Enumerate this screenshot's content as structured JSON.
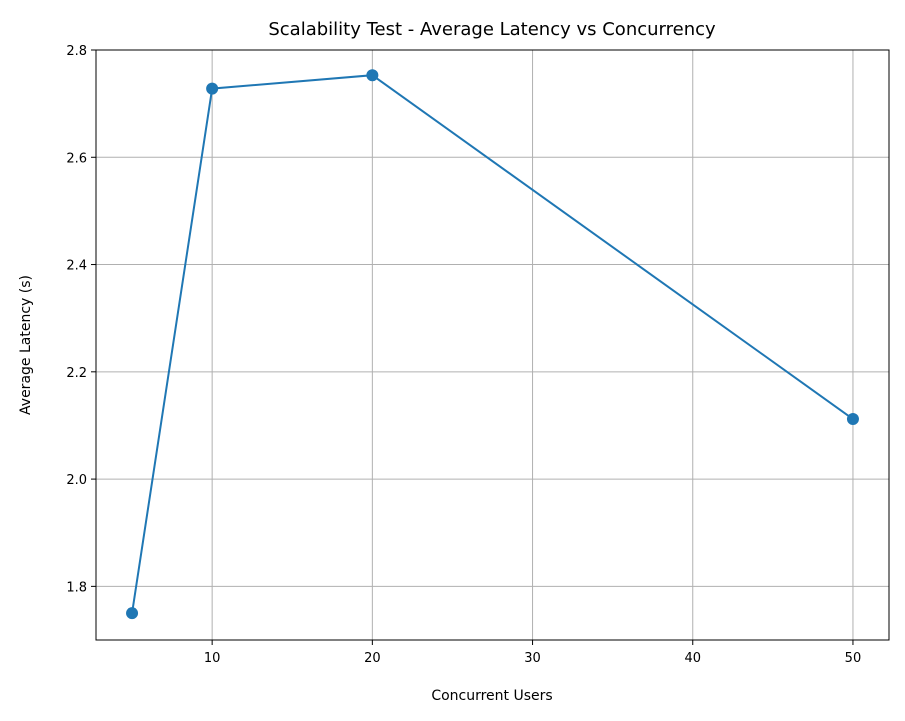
{
  "chart_data": {
    "type": "line",
    "title": "Scalability Test - Average Latency vs Concurrency",
    "xlabel": "Concurrent Users",
    "ylabel": "Average Latency (s)",
    "x": [
      5,
      10,
      20,
      50
    ],
    "series": [
      {
        "values": [
          1.75,
          2.728,
          2.753,
          2.112
        ]
      }
    ],
    "xlim": [
      2.75,
      52.25
    ],
    "ylim": [
      1.7,
      2.8
    ],
    "xticks": [
      10,
      20,
      30,
      40,
      50
    ],
    "xtick_labels": [
      "10",
      "20",
      "30",
      "40",
      "50"
    ],
    "yticks": [
      1.8,
      2.0,
      2.2,
      2.4,
      2.6,
      2.8
    ],
    "ytick_labels": [
      "1.8",
      "2.0",
      "2.2",
      "2.4",
      "2.6",
      "2.8"
    ],
    "grid": true,
    "line_color": "#1f77b4",
    "marker": "circle"
  }
}
